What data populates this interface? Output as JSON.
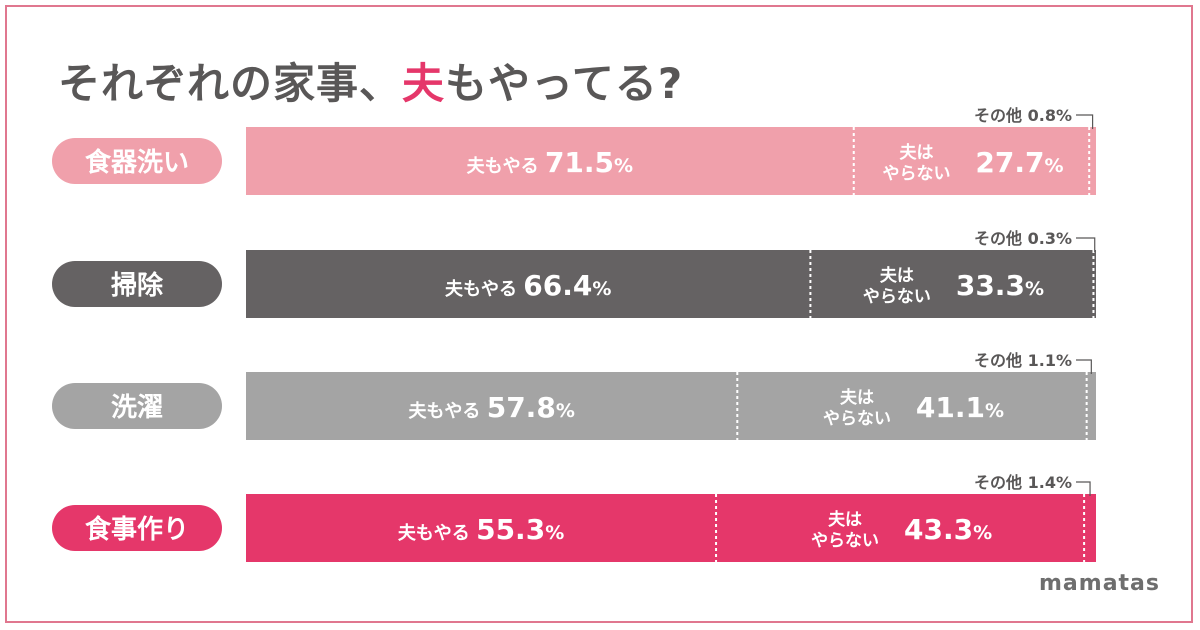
{
  "title": {
    "prefix": "それぞれの家事、",
    "highlight": "夫",
    "suffix": "もやってる?"
  },
  "brand": "mamatas",
  "colors": {
    "title_text": "#595757",
    "highlight": "#e5376a",
    "frame_border": "#e0778f",
    "other_label_text": "#595757",
    "rows": [
      "#f0a0ab",
      "#656263",
      "#a4a4a4",
      "#e5376a"
    ]
  },
  "segment_labels": {
    "does": "夫もやる",
    "not_line1": "夫は",
    "not_line2": "やらない",
    "other": "その他"
  },
  "chart_data": {
    "type": "bar",
    "orientation": "horizontal-stacked-100",
    "categories": [
      "食器洗い",
      "掃除",
      "洗濯",
      "食事作り"
    ],
    "series": [
      {
        "name": "夫もやる",
        "values": [
          71.5,
          66.4,
          57.8,
          55.3
        ]
      },
      {
        "name": "夫はやらない",
        "values": [
          27.7,
          33.3,
          41.1,
          43.3
        ]
      },
      {
        "name": "その他",
        "values": [
          0.8,
          0.3,
          1.1,
          1.4
        ]
      }
    ],
    "unit": "%",
    "xlim": [
      0,
      100
    ]
  }
}
